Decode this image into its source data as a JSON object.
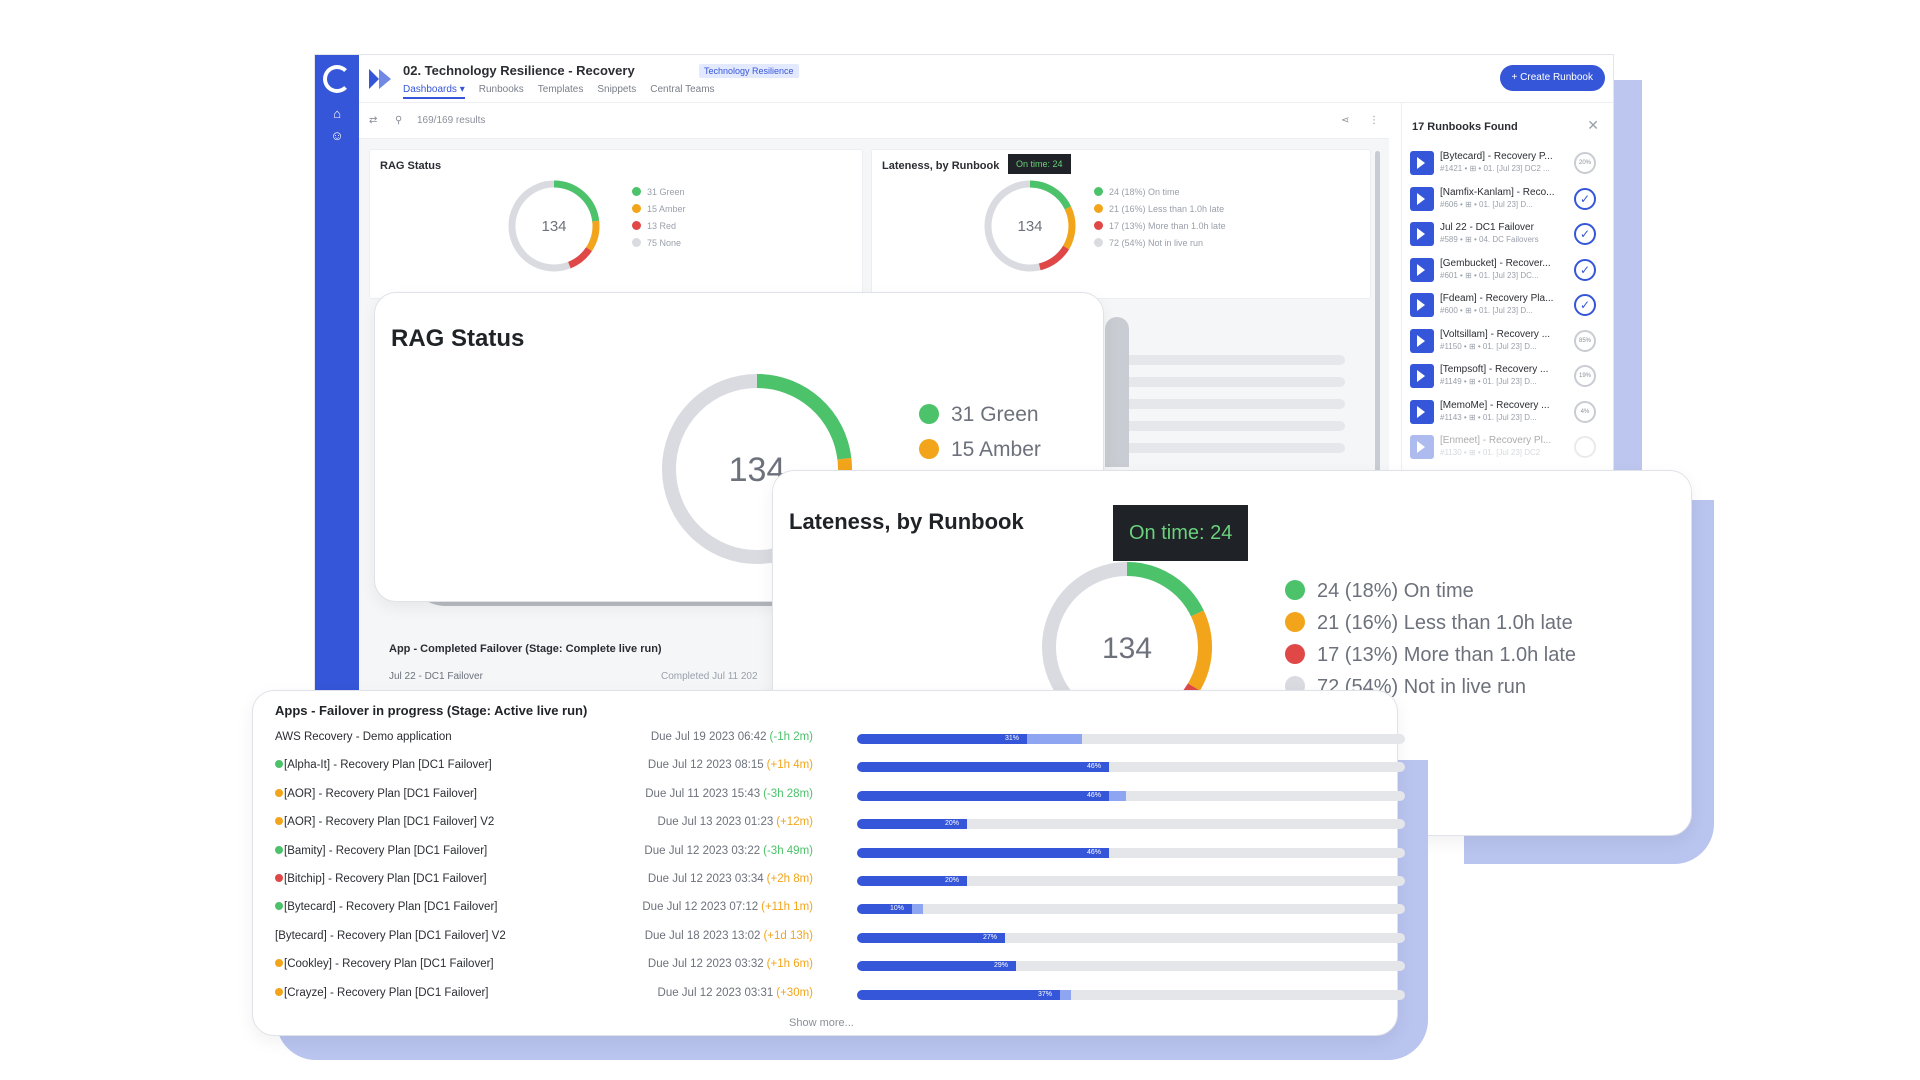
{
  "app": {
    "title": "02. Technology Resilience - Recovery",
    "tag": "Technology Resilience",
    "tabs": [
      "Dashboards",
      "Runbooks",
      "Templates",
      "Snippets",
      "Central Teams"
    ],
    "create_label": "+ Create Runbook",
    "results": "169/169 results"
  },
  "rag_small": {
    "title": "RAG Status",
    "center": "134",
    "legend": [
      "31 Green",
      "15 Amber",
      "13 Red",
      "75 None"
    ]
  },
  "late_small": {
    "title": "Lateness, by Runbook",
    "tooltip": "On time: 24",
    "center": "134",
    "legend": [
      "24 (18%) On time",
      "21 (16%) Less than 1.0h late",
      "17 (13%) More than 1.0h late",
      "72 (54%) Not in live run"
    ]
  },
  "completed": {
    "title": "App - Completed Failover (Stage: Complete live run)",
    "row_name": "Jul 22 - DC1 Failover",
    "row_status": "Completed Jul 11 202"
  },
  "rpanel": {
    "title": "17 Runbooks Found",
    "close": "✕",
    "items": [
      {
        "name": "[Bytecard] - Recovery P...",
        "meta": "#1421 • ⊞ • 01. [Jul 23] DC2 ...",
        "status": "20%"
      },
      {
        "name": "[Namfix-Kanlam] - Reco...",
        "meta": "#606 • ⊞ • 01. [Jul 23] D...",
        "status": "✓"
      },
      {
        "name": "Jul 22 - DC1 Failover",
        "meta": "#589 • ⊞ • 04. DC Failovers",
        "status": "✓"
      },
      {
        "name": "[Gembucket] - Recover...",
        "meta": "#601 • ⊞ • 01. [Jul 23] DC...",
        "status": "✓"
      },
      {
        "name": "[Fdeam] - Recovery Pla...",
        "meta": "#600 • ⊞ • 01. [Jul 23] D...",
        "status": "✓"
      },
      {
        "name": "[Voltsillam] - Recovery ...",
        "meta": "#1150 • ⊞ • 01. [Jul 23] D...",
        "status": "85%"
      },
      {
        "name": "[Tempsoft] - Recovery ...",
        "meta": "#1149 • ⊞ • 01. [Jul 23] D...",
        "status": "19%"
      },
      {
        "name": "[MemoMe] - Recovery ...",
        "meta": "#1143 • ⊞ • 01. [Jul 23] D...",
        "status": "4%"
      },
      {
        "name": "[Enmeet] - Recovery Pl...",
        "meta": "#1130 • ⊞ • 01. [Jul 23] DC2",
        "status": ""
      }
    ]
  },
  "rag_big": {
    "title": "RAG Status",
    "center": "134",
    "legend": [
      "31 Green",
      "15 Amber"
    ]
  },
  "late_big": {
    "title": "Lateness, by Runbook",
    "tooltip": "On time: 24",
    "center": "134",
    "legend": [
      "24 (18%) On time",
      "21 (16%) Less than 1.0h late",
      "17 (13%) More than 1.0h late",
      "72 (54%) Not in live run"
    ]
  },
  "apps": {
    "title": "Apps - Failover in progress (Stage: Active live run)",
    "show_more": "Show more...",
    "rows": [
      {
        "name": "AWS Recovery - Demo application",
        "due": "Due Jul 19 2023 06:42",
        "delta": "(-1h 2m)",
        "pct": "31%",
        "fill": 0.31,
        "fill2": 0.41,
        "dot": ""
      },
      {
        "name": "[Alpha-It] - Recovery Plan [DC1 Failover]",
        "due": "Due Jul 12 2023 08:15",
        "delta": "(+1h 4m)",
        "pct": "46%",
        "fill": 0.46,
        "fill2": 0.46,
        "dot": "#4cc26a"
      },
      {
        "name": "[AOR] - Recovery Plan [DC1 Failover]",
        "due": "Due Jul 11 2023 15:43",
        "delta": "(-3h 28m)",
        "pct": "46%",
        "fill": 0.46,
        "fill2": 0.49,
        "dot": "#f2a51b"
      },
      {
        "name": "[AOR] - Recovery Plan [DC1 Failover] V2",
        "due": "Due Jul 13 2023 01:23",
        "delta": "(+12m)",
        "pct": "20%",
        "fill": 0.2,
        "fill2": 0.2,
        "dot": "#f2a51b"
      },
      {
        "name": "[Bamity] - Recovery Plan [DC1 Failover]",
        "due": "Due Jul 12 2023 03:22",
        "delta": "(-3h 49m)",
        "pct": "46%",
        "fill": 0.46,
        "fill2": 0.46,
        "dot": "#4cc26a"
      },
      {
        "name": "[Bitchip] - Recovery Plan [DC1 Failover]",
        "due": "Due Jul 12 2023 03:34",
        "delta": "(+2h 8m)",
        "pct": "20%",
        "fill": 0.2,
        "fill2": 0.2,
        "dot": "#e04848"
      },
      {
        "name": "[Bytecard] - Recovery Plan [DC1 Failover]",
        "due": "Due Jul 12 2023 07:12",
        "delta": "(+11h 1m)",
        "pct": "10%",
        "fill": 0.1,
        "fill2": 0.12,
        "dot": "#4cc26a"
      },
      {
        "name": "[Bytecard] - Recovery Plan [DC1 Failover] V2",
        "due": "Due Jul 18 2023 13:02",
        "delta": "(+1d 13h)",
        "pct": "27%",
        "fill": 0.27,
        "fill2": 0.27,
        "dot": ""
      },
      {
        "name": "[Cookley] - Recovery Plan [DC1 Failover]",
        "due": "Due Jul 12 2023 03:32",
        "delta": "(+1h 6m)",
        "pct": "29%",
        "fill": 0.29,
        "fill2": 0.29,
        "dot": "#f2a51b"
      },
      {
        "name": "[Crayze] - Recovery Plan [DC1 Failover]",
        "due": "Due Jul 12 2023 03:31",
        "delta": "(+30m)",
        "pct": "37%",
        "fill": 0.37,
        "fill2": 0.39,
        "dot": "#f2a51b"
      }
    ]
  },
  "colors": {
    "brand": "#3556d8",
    "green": "#4cc26a",
    "amber": "#f2a51b",
    "red": "#e04848",
    "none": "#d9dbe0",
    "late_text": "#f2a51b",
    "early_text": "#4cc26a"
  }
}
